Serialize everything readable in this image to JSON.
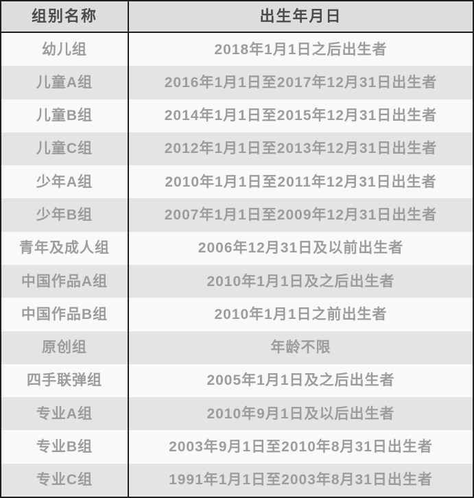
{
  "table": {
    "headers": {
      "group": "组别名称",
      "birth": "出生年月日"
    },
    "rows": [
      {
        "group": "幼儿组",
        "birth": "2018年1月1日之后出生者"
      },
      {
        "group": "儿童A组",
        "birth": "2016年1月1日至2017年12月31日出生者"
      },
      {
        "group": "儿童B组",
        "birth": "2014年1月1日至2015年12月31日出生者"
      },
      {
        "group": "儿童C组",
        "birth": "2012年1月1日至2013年12月31日出生者"
      },
      {
        "group": "少年A组",
        "birth": "2010年1月1日至2011年12月31日出生者"
      },
      {
        "group": "少年B组",
        "birth": "2007年1月1日至2009年12月31日出生者"
      },
      {
        "group": "青年及成人组",
        "birth": "2006年12月31日及以前出生者"
      },
      {
        "group": "中国作品A组",
        "birth": "2010年1月1日及之后出生者"
      },
      {
        "group": "中国作品B组",
        "birth": "2010年1月1日之前出生者"
      },
      {
        "group": "原创组",
        "birth": "年龄不限"
      },
      {
        "group": "四手联弹组",
        "birth": "2005年1月1日及之后出生者"
      },
      {
        "group": "专业A组",
        "birth": "2010年9月1日及以后出生者"
      },
      {
        "group": "专业B组",
        "birth": "2003年9月1日至2010年8月31日出生者"
      },
      {
        "group": "专业C组",
        "birth": "1991年1月1日至2003年8月31日出生者"
      }
    ]
  },
  "colors": {
    "border": "#1f1f1f",
    "header-bg": "#dedddb",
    "row-gray": "#e5e4e2",
    "row-white": "#f9f9f8",
    "header-text": "#4a4a4a",
    "row-text": "#9d9c9a"
  }
}
